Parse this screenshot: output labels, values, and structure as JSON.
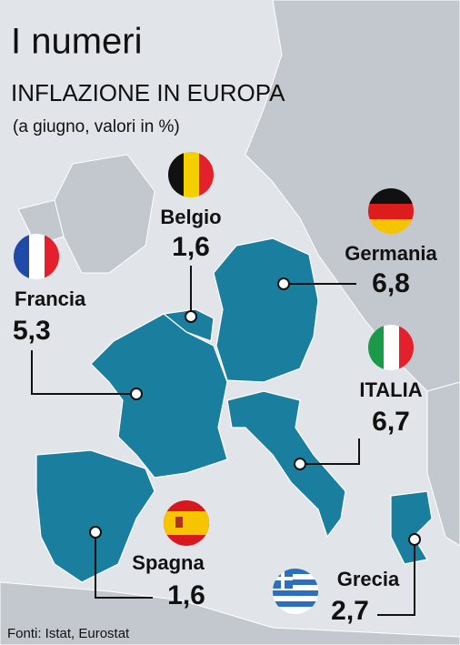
{
  "header": {
    "title": "I numeri",
    "subtitle": "INFLAZIONE IN EUROPA",
    "note": "(a giugno, valori in %)"
  },
  "countries": [
    {
      "name": "Belgio",
      "value": "1,6"
    },
    {
      "name": "Francia",
      "value": "5,3"
    },
    {
      "name": "Germania",
      "value": "6,8"
    },
    {
      "name": "ITALIA",
      "value": "6,7"
    },
    {
      "name": "Spagna",
      "value": "1,6"
    },
    {
      "name": "Grecia",
      "value": "2,7"
    }
  ],
  "source": "Fonti: Istat, Eurostat"
}
